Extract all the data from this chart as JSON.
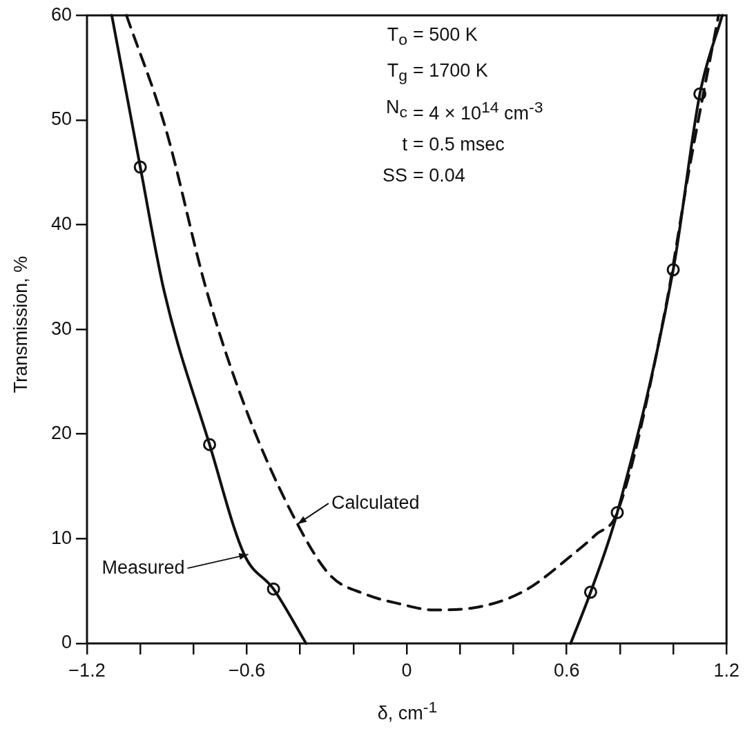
{
  "chart_data": {
    "type": "line",
    "xlabel": "δ, cm$^{-1}$",
    "ylabel": "Transmission, %",
    "xlim": [
      -1.2,
      1.2
    ],
    "ylim": [
      0,
      60
    ],
    "xticks": [
      -1.2,
      {
        "value": -1.0,
        "label": null
      },
      {
        "value": -0.8,
        "label": null
      },
      -0.6,
      {
        "value": -0.4,
        "label": null
      },
      {
        "value": -0.2,
        "label": null
      },
      0,
      {
        "value": 0.2,
        "label": null
      },
      {
        "value": 0.4,
        "label": null
      },
      0.6,
      {
        "value": 0.8,
        "label": null
      },
      {
        "value": 1.0,
        "label": null
      },
      1.2
    ],
    "yticks": [
      0,
      10,
      20,
      30,
      40,
      50,
      60
    ],
    "grid": false,
    "legend": false,
    "series": [
      {
        "type": "line",
        "line_style": "solid",
        "marker": "none",
        "color": "#111111",
        "x": [
          -1.107,
          -1.0,
          -0.91,
          -0.74,
          -0.61,
          -0.5,
          -0.378,
          0.0,
          0.615,
          0.69,
          0.79,
          1.0,
          1.1,
          1.184
        ],
        "values": [
          60,
          45.5,
          33.6,
          19.0,
          8.5,
          5.2,
          0,
          null,
          0,
          4.9,
          12.5,
          35.7,
          52.5,
          60
        ]
      },
      {
        "type": "line",
        "line_style": "dashed",
        "marker": "none",
        "color": "#111111",
        "x": [
          -1.052,
          -0.905,
          -0.75,
          -0.595,
          -0.41,
          -0.287,
          -0.155,
          -0.03,
          0.1,
          0.25,
          0.44,
          0.623,
          0.71,
          0.79,
          0.965,
          1.06,
          1.17
        ],
        "values": [
          60,
          49.2,
          33.6,
          21.8,
          11.4,
          6.5,
          4.7,
          3.8,
          3.2,
          3.4,
          5.0,
          8.5,
          10.4,
          12.5,
          31.2,
          45.3,
          60
        ]
      },
      {
        "type": "scatter",
        "marker": "circle",
        "color": "#111111",
        "x": [
          -1.0,
          -0.74,
          -0.5,
          0.69,
          0.79,
          1.0,
          1.1
        ],
        "values": [
          45.5,
          19.0,
          5.2,
          4.9,
          12.5,
          35.7,
          52.5
        ]
      }
    ],
    "annotations": [
      "T$_{o}$ = 500 K",
      "T$_{g}$ = 1700 K",
      "N$_{c}$ = 4 × 10$^{14}$ cm$^{-3}$",
      "t = 0.5 msec",
      "SS = 0.04",
      {
        "text": "Measured",
        "x": -0.595,
        "y": 8.5
      },
      {
        "text": "Calculated",
        "x": -0.41,
        "y": 11.4
      }
    ]
  }
}
